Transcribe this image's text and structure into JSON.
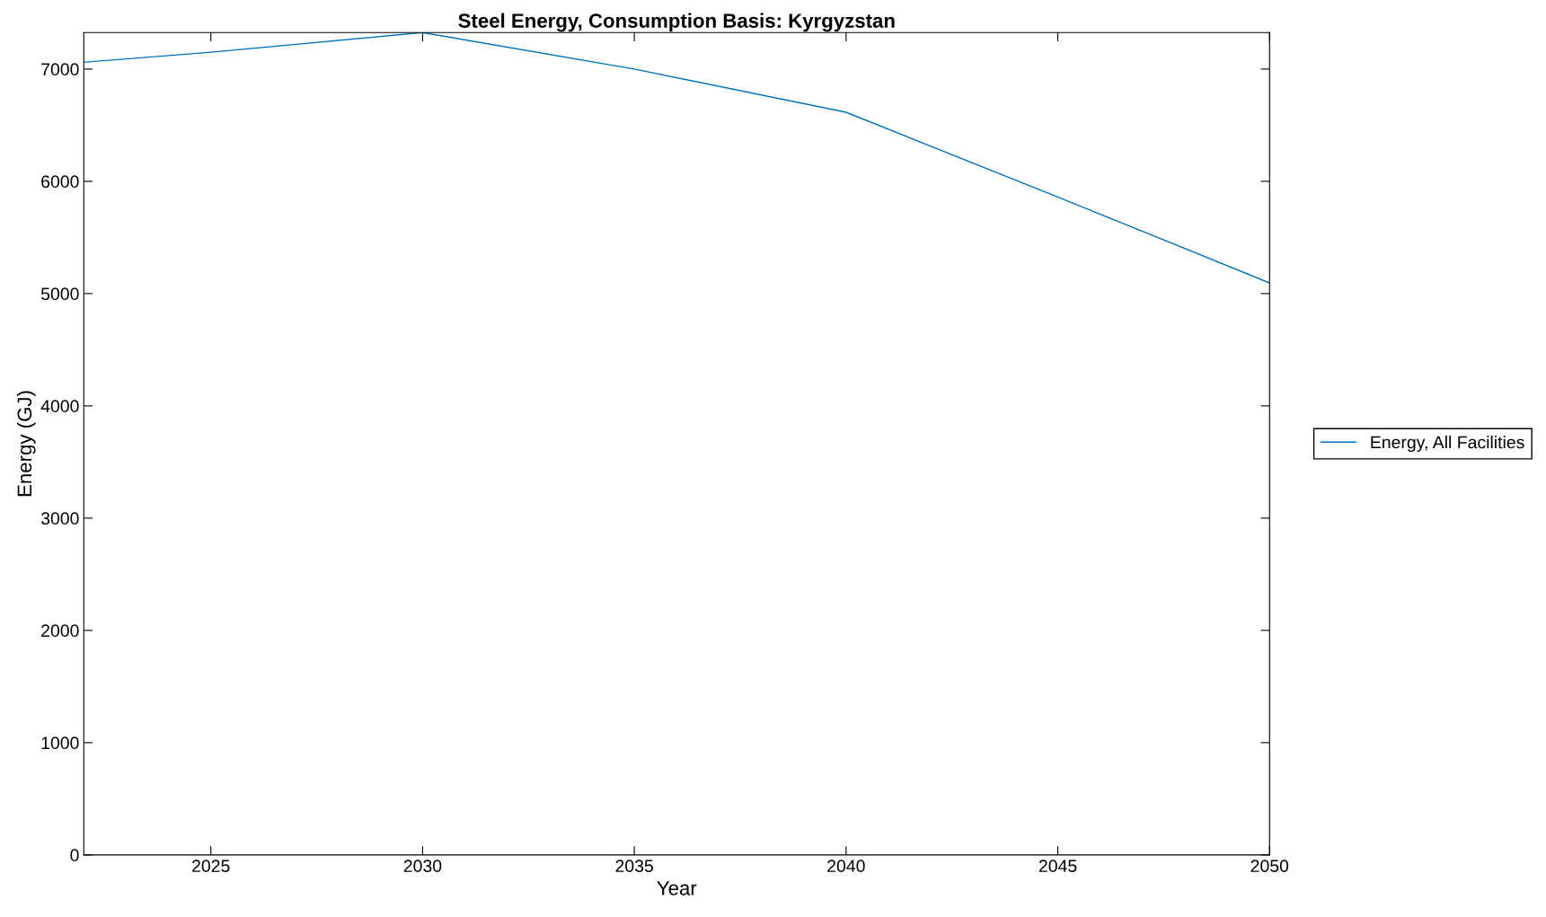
{
  "chart_data": {
    "type": "line",
    "title": "Steel Energy, Consumption Basis: Kyrgyzstan",
    "xlabel": "Year",
    "ylabel": "Energy (GJ)",
    "x": [
      2022,
      2025,
      2030,
      2035,
      2040,
      2045,
      2050
    ],
    "series": [
      {
        "name": "Energy, All Facilities",
        "color": "#0072bd",
        "values": [
          7060,
          7150,
          7325,
          7000,
          6615,
          5860,
          5095
        ]
      }
    ],
    "xlim": [
      2022,
      2050
    ],
    "xticks": [
      2025,
      2030,
      2035,
      2040,
      2045,
      2050
    ],
    "ylim": [
      0,
      7325
    ],
    "yticks": [
      0,
      1000,
      2000,
      3000,
      4000,
      5000,
      6000,
      7000
    ],
    "grid": false,
    "legend": "right",
    "marker": "none",
    "line_style": "solid"
  }
}
